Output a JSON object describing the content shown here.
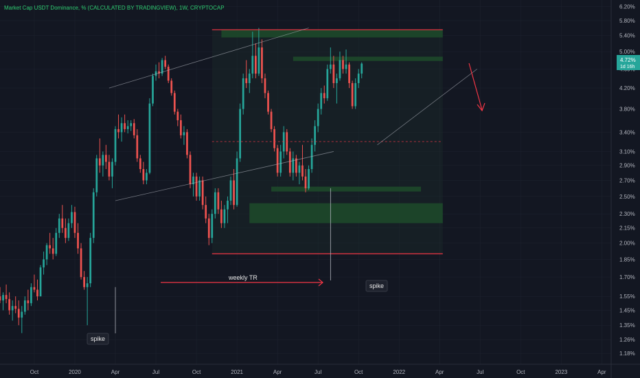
{
  "chart_data": {
    "type": "candlestick",
    "title": "Market Cap USDT Dominance, % (CALCULATED BY TRADINGVIEW), 1W, CRYPTOCAP",
    "y_scale": "log",
    "ylim": [
      1.12,
      6.4
    ],
    "y_ticks": [
      "6.20%",
      "5.80%",
      "5.40%",
      "5.00%",
      "4.60%",
      "4.20%",
      "3.80%",
      "3.40%",
      "3.10%",
      "2.90%",
      "2.70%",
      "2.50%",
      "2.30%",
      "2.15%",
      "2.00%",
      "1.85%",
      "1.70%",
      "1.55%",
      "1.45%",
      "1.35%",
      "1.26%",
      "1.18%"
    ],
    "y_tick_values": [
      6.2,
      5.8,
      5.4,
      5.0,
      4.6,
      4.2,
      3.8,
      3.4,
      3.1,
      2.9,
      2.7,
      2.5,
      2.3,
      2.15,
      2.0,
      1.85,
      1.7,
      1.55,
      1.45,
      1.35,
      1.26,
      1.18
    ],
    "x_ticks": [
      "Oct",
      "2020",
      "Apr",
      "Jul",
      "Oct",
      "2021",
      "Apr",
      "Jul",
      "Oct",
      "2022",
      "Apr",
      "Jul",
      "Oct",
      "2023",
      "Apr"
    ],
    "x_tick_weeks": [
      0,
      13,
      26,
      39,
      52,
      65,
      78,
      91,
      104,
      117,
      130,
      143,
      156,
      169,
      182
    ],
    "x_week_range": [
      -11,
      185
    ],
    "candles": [
      [
        1.55,
        1.62,
        1.5,
        1.52
      ],
      [
        1.52,
        1.58,
        1.45,
        1.56
      ],
      [
        1.56,
        1.64,
        1.5,
        1.53
      ],
      [
        1.53,
        1.58,
        1.42,
        1.45
      ],
      [
        1.45,
        1.52,
        1.38,
        1.48
      ],
      [
        1.48,
        1.55,
        1.43,
        1.46
      ],
      [
        1.46,
        1.52,
        1.35,
        1.4
      ],
      [
        1.4,
        1.48,
        1.3,
        1.44
      ],
      [
        1.44,
        1.55,
        1.42,
        1.52
      ],
      [
        1.52,
        1.6,
        1.45,
        1.5
      ],
      [
        1.5,
        1.65,
        1.48,
        1.62
      ],
      [
        1.62,
        1.72,
        1.58,
        1.6
      ],
      [
        1.6,
        1.68,
        1.52,
        1.55
      ],
      [
        1.55,
        1.8,
        1.55,
        1.78
      ],
      [
        1.78,
        1.92,
        1.72,
        1.85
      ],
      [
        1.85,
        2.0,
        1.8,
        1.98
      ],
      [
        1.98,
        2.1,
        1.9,
        1.95
      ],
      [
        1.95,
        2.05,
        1.85,
        1.9
      ],
      [
        1.9,
        2.15,
        1.88,
        2.1
      ],
      [
        2.1,
        2.3,
        2.05,
        2.25
      ],
      [
        2.25,
        2.4,
        2.1,
        2.15
      ],
      [
        2.15,
        2.25,
        2.0,
        2.05
      ],
      [
        2.05,
        2.25,
        2.02,
        2.2
      ],
      [
        2.2,
        2.4,
        2.15,
        2.32
      ],
      [
        2.32,
        2.38,
        2.05,
        2.1
      ],
      [
        2.1,
        2.2,
        1.9,
        1.95
      ],
      [
        1.95,
        2.0,
        1.68,
        1.7
      ],
      [
        1.7,
        1.75,
        1.6,
        1.62
      ],
      [
        1.62,
        1.7,
        1.35,
        1.65
      ],
      [
        1.65,
        2.1,
        1.62,
        2.05
      ],
      [
        2.05,
        2.6,
        2.0,
        2.55
      ],
      [
        2.55,
        3.05,
        2.5,
        3.0
      ],
      [
        3.0,
        3.3,
        2.8,
        2.9
      ],
      [
        2.9,
        3.1,
        2.75,
        3.05
      ],
      [
        3.05,
        3.2,
        2.85,
        2.95
      ],
      [
        2.95,
        3.05,
        2.7,
        2.75
      ],
      [
        2.75,
        3.0,
        2.6,
        2.95
      ],
      [
        2.95,
        3.5,
        2.9,
        3.45
      ],
      [
        3.45,
        3.7,
        3.3,
        3.4
      ],
      [
        3.4,
        3.65,
        3.25,
        3.55
      ],
      [
        3.55,
        3.7,
        3.4,
        3.45
      ],
      [
        3.45,
        3.6,
        3.38,
        3.5
      ],
      [
        3.5,
        3.6,
        3.42,
        3.55
      ],
      [
        3.55,
        3.62,
        3.3,
        3.35
      ],
      [
        3.35,
        3.45,
        2.95,
        3.0
      ],
      [
        3.0,
        3.05,
        2.8,
        2.85
      ],
      [
        2.85,
        2.95,
        2.65,
        2.7
      ],
      [
        2.7,
        2.85,
        2.65,
        2.8
      ],
      [
        2.8,
        4.0,
        2.78,
        3.9
      ],
      [
        3.9,
        4.5,
        3.85,
        4.45
      ],
      [
        4.45,
        4.7,
        4.35,
        4.55
      ],
      [
        4.55,
        4.75,
        4.4,
        4.5
      ],
      [
        4.5,
        4.85,
        4.45,
        4.8
      ],
      [
        4.8,
        4.9,
        4.6,
        4.65
      ],
      [
        4.65,
        4.7,
        4.3,
        4.35
      ],
      [
        4.35,
        4.4,
        4.05,
        4.1
      ],
      [
        4.1,
        4.15,
        3.7,
        3.75
      ],
      [
        3.75,
        3.8,
        3.5,
        3.6
      ],
      [
        3.6,
        3.7,
        3.3,
        3.35
      ],
      [
        3.35,
        3.5,
        3.2,
        3.4
      ],
      [
        3.4,
        3.45,
        3.0,
        3.05
      ],
      [
        3.05,
        3.1,
        2.6,
        2.65
      ],
      [
        2.65,
        2.8,
        2.5,
        2.75
      ],
      [
        2.75,
        2.8,
        2.45,
        2.5
      ],
      [
        2.5,
        2.75,
        2.45,
        2.7
      ],
      [
        2.7,
        2.75,
        2.35,
        2.4
      ],
      [
        2.4,
        2.5,
        2.2,
        2.25
      ],
      [
        2.25,
        2.3,
        1.98,
        2.05
      ],
      [
        2.05,
        2.35,
        2.0,
        2.3
      ],
      [
        2.3,
        2.6,
        2.25,
        2.55
      ],
      [
        2.55,
        2.6,
        2.3,
        2.35
      ],
      [
        2.35,
        2.45,
        2.15,
        2.2
      ],
      [
        2.2,
        2.4,
        2.15,
        2.35
      ],
      [
        2.35,
        2.5,
        2.2,
        2.45
      ],
      [
        2.45,
        2.75,
        2.4,
        2.7
      ],
      [
        2.7,
        2.85,
        2.35,
        2.4
      ],
      [
        2.4,
        3.1,
        2.38,
        3.0
      ],
      [
        3.0,
        3.9,
        2.95,
        3.8
      ],
      [
        3.8,
        4.5,
        3.7,
        4.4
      ],
      [
        4.4,
        4.8,
        4.2,
        4.3
      ],
      [
        4.3,
        4.6,
        4.1,
        4.5
      ],
      [
        4.5,
        5.5,
        4.4,
        4.9
      ],
      [
        4.9,
        5.2,
        4.4,
        4.5
      ],
      [
        4.5,
        5.6,
        4.45,
        5.1
      ],
      [
        5.1,
        5.3,
        4.3,
        4.4
      ],
      [
        4.4,
        4.5,
        4.0,
        4.1
      ],
      [
        4.1,
        4.15,
        3.7,
        3.75
      ],
      [
        3.75,
        3.8,
        3.4,
        3.45
      ],
      [
        3.45,
        3.5,
        3.1,
        3.15
      ],
      [
        3.15,
        3.2,
        2.75,
        2.8
      ],
      [
        2.8,
        3.2,
        2.75,
        3.1
      ],
      [
        3.1,
        3.5,
        3.0,
        3.4
      ],
      [
        3.4,
        3.45,
        3.05,
        3.1
      ],
      [
        3.1,
        3.15,
        2.75,
        2.8
      ],
      [
        2.8,
        3.1,
        2.7,
        3.0
      ],
      [
        3.0,
        3.05,
        2.75,
        2.8
      ],
      [
        2.8,
        2.95,
        2.65,
        2.9
      ],
      [
        2.9,
        3.2,
        2.7,
        2.75
      ],
      [
        2.75,
        2.85,
        2.55,
        2.6
      ],
      [
        2.6,
        2.9,
        2.58,
        2.85
      ],
      [
        2.85,
        3.3,
        2.8,
        3.2
      ],
      [
        3.2,
        3.6,
        3.1,
        3.5
      ],
      [
        3.5,
        3.9,
        3.4,
        3.8
      ],
      [
        3.8,
        4.2,
        3.7,
        4.1
      ],
      [
        4.1,
        4.25,
        3.9,
        4.0
      ],
      [
        4.0,
        4.7,
        3.95,
        4.6
      ],
      [
        4.6,
        5.1,
        4.5,
        4.7
      ],
      [
        4.7,
        4.9,
        4.2,
        4.3
      ],
      [
        4.3,
        4.5,
        3.9,
        4.4
      ],
      [
        4.4,
        5.0,
        4.35,
        4.8
      ],
      [
        4.8,
        4.9,
        4.5,
        4.6
      ],
      [
        4.6,
        5.05,
        4.5,
        4.7
      ],
      [
        4.7,
        4.75,
        4.2,
        4.3
      ],
      [
        4.3,
        4.35,
        3.8,
        3.85
      ],
      [
        3.85,
        4.4,
        3.8,
        4.3
      ],
      [
        4.3,
        4.6,
        4.2,
        4.5
      ],
      [
        4.5,
        4.75,
        4.4,
        4.72
      ]
    ],
    "candle_start_week": -11,
    "annotations": {
      "weekly_tr": "weekly TR",
      "spike_1": "spike",
      "spike_2": "spike",
      "last_price": "4.72%",
      "countdown": "1d 16h"
    },
    "levels": {
      "range_top": 5.55,
      "range_bottom": 1.9,
      "midline": 3.25
    },
    "zones": [
      {
        "y1": 5.55,
        "y2": 5.35,
        "w1": 60,
        "w2": 131
      },
      {
        "y1": 4.88,
        "y2": 4.78,
        "w1": 83,
        "w2": 131
      },
      {
        "y1": 2.62,
        "y2": 2.56,
        "w1": 76,
        "w2": 124
      },
      {
        "y1": 2.42,
        "y2": 2.2,
        "w1": 69,
        "w2": 131
      }
    ],
    "colors": {
      "up": "#26a69a",
      "down": "#ef5350",
      "background": "#131722",
      "zone": "#1e4d2b",
      "level": "#f23645",
      "title": "#2ecc71",
      "grid": "#1f2430"
    }
  }
}
